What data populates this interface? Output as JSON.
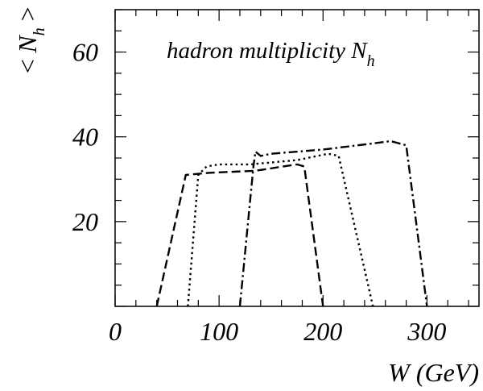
{
  "chart_data": {
    "type": "line",
    "title": "hadron multiplicity N_h",
    "title_parts": {
      "main": "hadron multiplicity N",
      "sub": "h"
    },
    "xlabel": "W (GeV)",
    "ylabel": "< N_h >",
    "ylabel_parts": {
      "left": "<",
      "main": "N",
      "sub": "h",
      "right": ">"
    },
    "xlim": [
      0,
      350
    ],
    "ylim": [
      0,
      70
    ],
    "x_ticks": [
      "0",
      "100",
      "200",
      "300"
    ],
    "x_tick_values": [
      0,
      100,
      200,
      300
    ],
    "y_ticks": [
      "20",
      "40",
      "60"
    ],
    "y_tick_values": [
      20,
      40,
      60
    ],
    "grid": false,
    "series": [
      {
        "style": "dashed",
        "color": "#000000",
        "x": [
          40,
          68,
          90,
          135,
          175,
          182,
          200
        ],
        "y": [
          0,
          31,
          31.5,
          32,
          33.5,
          33,
          0
        ]
      },
      {
        "style": "dotted",
        "color": "#000000",
        "x": [
          70,
          80,
          88,
          100,
          130,
          175,
          205,
          215,
          248
        ],
        "y": [
          0,
          31,
          33,
          33.5,
          33.5,
          34.5,
          36,
          35.5,
          0
        ]
      },
      {
        "style": "dash-dot",
        "color": "#000000",
        "x": [
          120,
          133,
          135,
          140,
          150,
          200,
          250,
          265,
          280,
          300
        ],
        "y": [
          0,
          33,
          36.5,
          35.5,
          36,
          37,
          38.5,
          39,
          38,
          0
        ]
      }
    ]
  }
}
